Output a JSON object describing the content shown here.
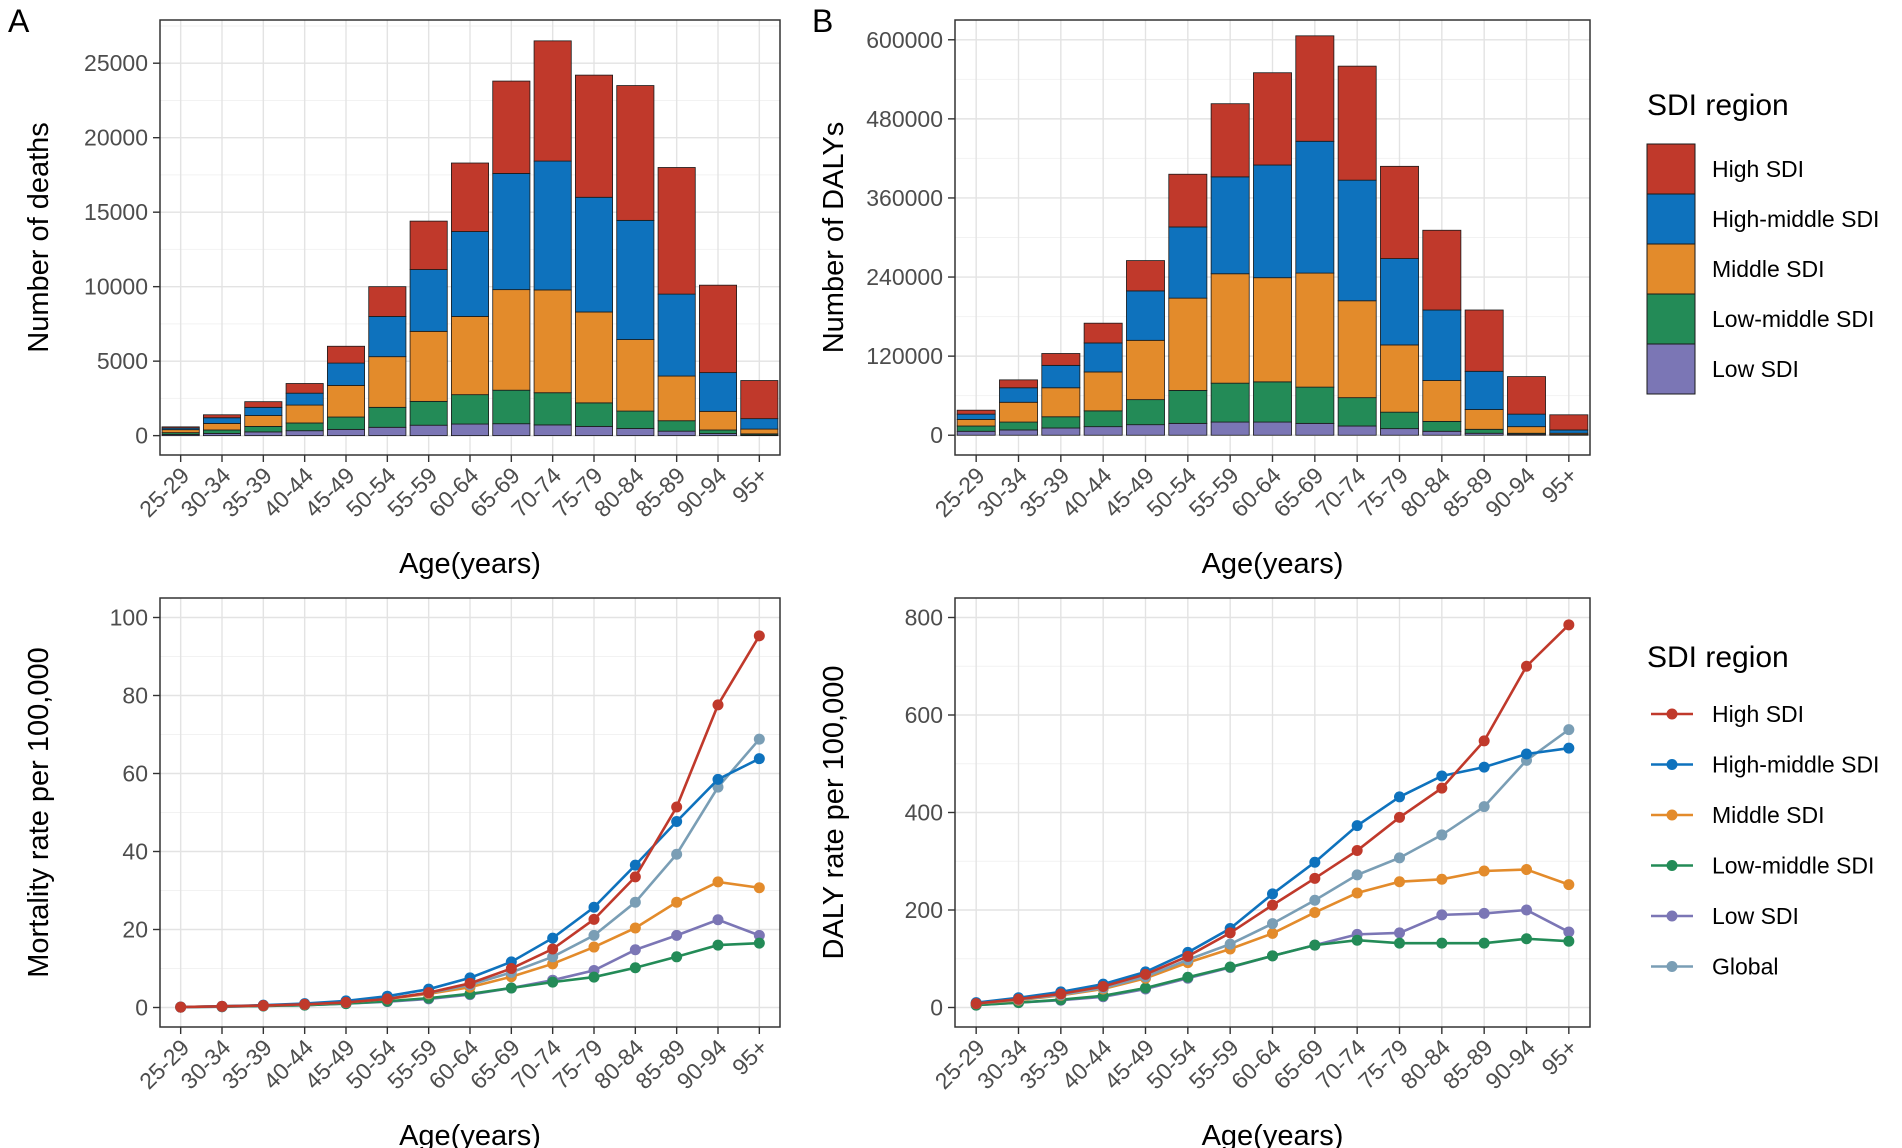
{
  "panels": [
    {
      "letter": "A",
      "xlabel": "Age(years)",
      "ylabel": "Number of deaths"
    },
    {
      "letter": "B",
      "xlabel": "Age(years)",
      "ylabel": "Number of DALYs"
    },
    {
      "letter": "",
      "xlabel": "Age(years)",
      "ylabel": "Mortality rate per 100,000"
    },
    {
      "letter": "",
      "xlabel": "Age(years)",
      "ylabel": "DALY rate per 100,000"
    }
  ],
  "legends": {
    "bars": {
      "title": "SDI region",
      "entries": [
        {
          "label": "High SDI",
          "color": "#c0392b"
        },
        {
          "label": "High-middle SDI",
          "color": "#0e72bd"
        },
        {
          "label": "Middle SDI",
          "color": "#e38b2b"
        },
        {
          "label": "Low-middle SDI",
          "color": "#238b57"
        },
        {
          "label": "Low SDI",
          "color": "#7b76b5"
        }
      ]
    },
    "lines": {
      "title": "SDI region",
      "entries": [
        {
          "label": "High SDI",
          "color": "#c0392b"
        },
        {
          "label": "High-middle SDI",
          "color": "#0e72bd"
        },
        {
          "label": "Middle SDI",
          "color": "#e38b2b"
        },
        {
          "label": "Low-middle SDI",
          "color": "#238b57"
        },
        {
          "label": "Low SDI",
          "color": "#7b76b5"
        },
        {
          "label": "Global",
          "color": "#7a9eb5"
        }
      ]
    }
  },
  "chart_data": [
    {
      "type": "bar",
      "stacked": true,
      "title": "",
      "xlabel": "Age(years)",
      "ylabel": "Number of deaths",
      "categories": [
        "25-29",
        "30-34",
        "35-39",
        "40-44",
        "45-49",
        "50-54",
        "55-59",
        "60-64",
        "65-69",
        "70-74",
        "75-79",
        "80-84",
        "85-89",
        "90-94",
        "95+"
      ],
      "ylim": [
        -1300,
        27900
      ],
      "yticks": [
        0,
        5000,
        10000,
        15000,
        20000,
        25000
      ],
      "series": [
        {
          "name": "Low SDI",
          "color": "#7b76b5",
          "values": [
            80,
            150,
            250,
            330,
            420,
            560,
            700,
            780,
            800,
            720,
            620,
            480,
            300,
            140,
            40
          ]
        },
        {
          "name": "Low-middle SDI",
          "color": "#238b57",
          "values": [
            120,
            230,
            370,
            520,
            830,
            1340,
            1600,
            1970,
            2250,
            2160,
            1580,
            1170,
            700,
            240,
            80
          ]
        },
        {
          "name": "Middle SDI",
          "color": "#e38b2b",
          "values": [
            200,
            440,
            730,
            1200,
            2120,
            3400,
            4700,
            5250,
            6750,
            6900,
            6100,
            4800,
            3000,
            1250,
            320
          ]
        },
        {
          "name": "High-middle SDI",
          "color": "#0e72bd",
          "values": [
            110,
            380,
            550,
            800,
            1500,
            2700,
            4150,
            5700,
            7800,
            8650,
            7700,
            8000,
            5500,
            2600,
            700
          ]
        },
        {
          "name": "High SDI",
          "color": "#c0392b",
          "values": [
            80,
            200,
            380,
            650,
            1130,
            2000,
            3250,
            4600,
            6200,
            8070,
            8200,
            9050,
            8500,
            5870,
            2560
          ]
        }
      ]
    },
    {
      "type": "bar",
      "stacked": true,
      "title": "",
      "xlabel": "Age(years)",
      "ylabel": "Number of DALYs",
      "categories": [
        "25-29",
        "30-34",
        "35-39",
        "40-44",
        "45-49",
        "50-54",
        "55-59",
        "60-64",
        "65-69",
        "70-74",
        "75-79",
        "80-84",
        "85-89",
        "90-94",
        "95+"
      ],
      "ylim": [
        -30000,
        630000
      ],
      "yticks": [
        0,
        120000,
        240000,
        360000,
        480000,
        600000
      ],
      "series": [
        {
          "name": "Low SDI",
          "color": "#7b76b5",
          "values": [
            6000,
            8000,
            11000,
            13000,
            16000,
            18000,
            20000,
            20000,
            18000,
            14000,
            10000,
            6000,
            3000,
            1500,
            500
          ]
        },
        {
          "name": "Low-middle SDI",
          "color": "#238b57",
          "values": [
            8000,
            12000,
            17000,
            24000,
            38000,
            50000,
            59000,
            61000,
            55000,
            43000,
            25000,
            15000,
            6000,
            1500,
            500
          ]
        },
        {
          "name": "Middle SDI",
          "color": "#e38b2b",
          "values": [
            10000,
            30000,
            44000,
            59000,
            90000,
            140000,
            166000,
            158000,
            173000,
            147000,
            102000,
            62000,
            30000,
            10000,
            2000
          ]
        },
        {
          "name": "High-middle SDI",
          "color": "#0e72bd",
          "values": [
            8000,
            22000,
            34000,
            44000,
            75000,
            108000,
            147000,
            171000,
            200000,
            183000,
            131000,
            107000,
            58000,
            19000,
            5000
          ]
        },
        {
          "name": "High SDI",
          "color": "#c0392b",
          "values": [
            6000,
            12000,
            18000,
            30000,
            46000,
            80000,
            111000,
            140000,
            160000,
            173000,
            140000,
            121000,
            93000,
            57000,
            23000
          ]
        }
      ]
    },
    {
      "type": "line",
      "title": "",
      "xlabel": "Age(years)",
      "ylabel": "Mortality rate per 100,000",
      "categories": [
        "25-29",
        "30-34",
        "35-39",
        "40-44",
        "45-49",
        "50-54",
        "55-59",
        "60-64",
        "65-69",
        "70-74",
        "75-79",
        "80-84",
        "85-89",
        "90-94",
        "95+"
      ],
      "ylim": [
        -5,
        105
      ],
      "yticks": [
        0,
        20,
        40,
        60,
        80,
        100
      ],
      "series": [
        {
          "name": "Low SDI",
          "color": "#7b76b5",
          "values": [
            0.1,
            0.2,
            0.4,
            0.6,
            1.0,
            1.5,
            2.2,
            3.3,
            5.0,
            7.0,
            9.5,
            14.8,
            18.5,
            22.5,
            18.5
          ]
        },
        {
          "name": "Low-middle SDI",
          "color": "#238b57",
          "values": [
            0.1,
            0.2,
            0.4,
            0.6,
            1.0,
            1.6,
            2.4,
            3.5,
            5.0,
            6.5,
            7.8,
            10.2,
            13.0,
            16.0,
            16.5
          ]
        },
        {
          "name": "Middle SDI",
          "color": "#e38b2b",
          "values": [
            0.1,
            0.3,
            0.5,
            0.8,
            1.3,
            2.2,
            3.5,
            5.2,
            7.9,
            11.2,
            15.5,
            20.4,
            27.0,
            32.2,
            30.7
          ]
        },
        {
          "name": "Global",
          "color": "#7a9eb5",
          "values": [
            0.1,
            0.3,
            0.5,
            0.8,
            1.3,
            2.3,
            3.7,
            5.8,
            9.0,
            13.0,
            18.5,
            27.0,
            39.3,
            56.5,
            68.8
          ]
        },
        {
          "name": "High-middle SDI",
          "color": "#0e72bd",
          "values": [
            0.1,
            0.3,
            0.6,
            1.0,
            1.7,
            2.9,
            4.7,
            7.6,
            11.7,
            17.8,
            25.7,
            36.5,
            47.7,
            58.5,
            63.8
          ]
        },
        {
          "name": "High SDI",
          "color": "#c0392b",
          "values": [
            0.1,
            0.3,
            0.5,
            0.8,
            1.3,
            2.2,
            3.8,
            6.2,
            10.0,
            15.0,
            22.6,
            33.5,
            51.4,
            77.6,
            95.3
          ]
        }
      ]
    },
    {
      "type": "line",
      "title": "",
      "xlabel": "Age(years)",
      "ylabel": "DALY rate per 100,000",
      "categories": [
        "25-29",
        "30-34",
        "35-39",
        "40-44",
        "45-49",
        "50-54",
        "55-59",
        "60-64",
        "65-69",
        "70-74",
        "75-79",
        "80-84",
        "85-89",
        "90-94",
        "95+"
      ],
      "ylim": [
        -40,
        840
      ],
      "yticks": [
        0,
        200,
        400,
        600,
        800
      ],
      "series": [
        {
          "name": "Low SDI",
          "color": "#7b76b5",
          "values": [
            5,
            10,
            15,
            22,
            38,
            60,
            82,
            106,
            128,
            150,
            153,
            190,
            193,
            200,
            155
          ]
        },
        {
          "name": "Low-middle SDI",
          "color": "#238b57",
          "values": [
            5,
            10,
            16,
            24,
            40,
            62,
            83,
            106,
            128,
            138,
            132,
            132,
            132,
            141,
            136
          ]
        },
        {
          "name": "Middle SDI",
          "color": "#e38b2b",
          "values": [
            8,
            15,
            25,
            38,
            60,
            92,
            120,
            152,
            195,
            235,
            258,
            263,
            280,
            283,
            252
          ]
        },
        {
          "name": "Global",
          "color": "#7a9eb5",
          "values": [
            8,
            16,
            26,
            40,
            63,
            98,
            130,
            172,
            220,
            272,
            307,
            354,
            412,
            507,
            570
          ]
        },
        {
          "name": "High-middle SDI",
          "color": "#0e72bd",
          "values": [
            10,
            20,
            32,
            48,
            73,
            113,
            162,
            233,
            298,
            373,
            432,
            475,
            493,
            520,
            532
          ]
        },
        {
          "name": "High SDI",
          "color": "#c0392b",
          "values": [
            8,
            17,
            28,
            43,
            68,
            105,
            153,
            210,
            265,
            322,
            390,
            450,
            547,
            700,
            785
          ]
        }
      ]
    }
  ]
}
